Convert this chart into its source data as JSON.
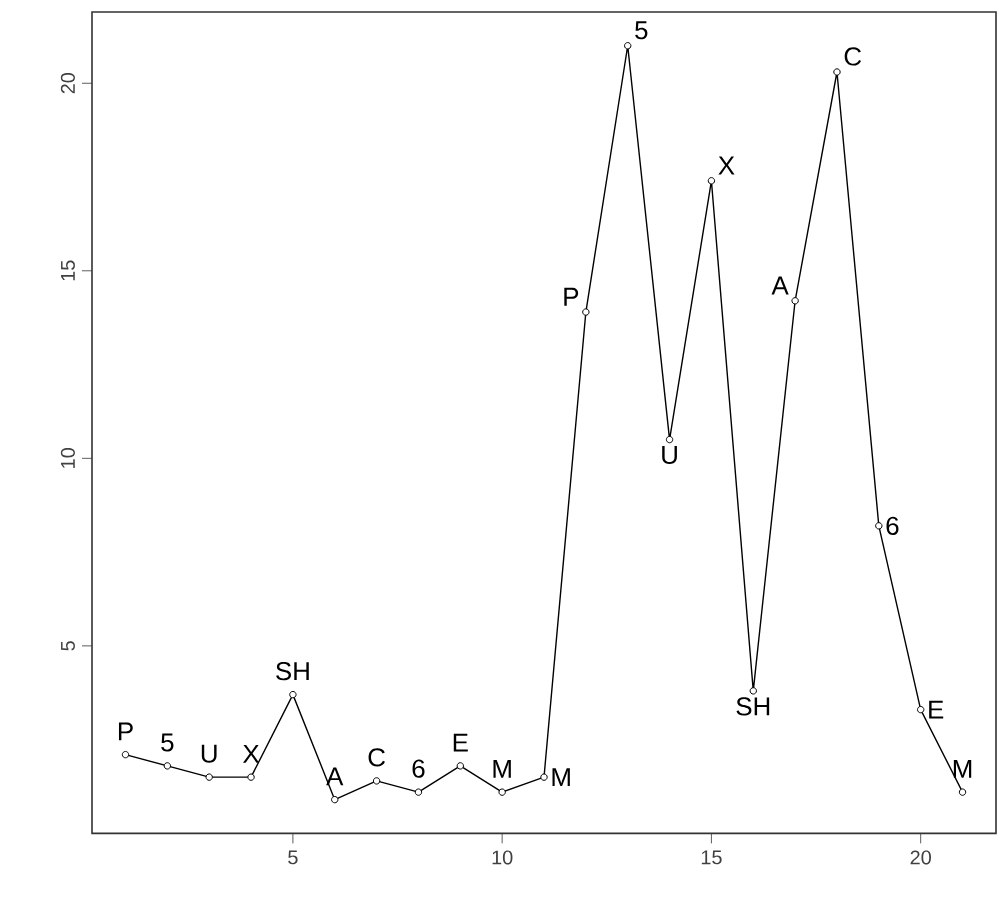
{
  "chart_data": {
    "type": "line",
    "x": [
      1,
      2,
      3,
      4,
      5,
      6,
      7,
      8,
      9,
      10,
      11,
      12,
      13,
      14,
      15,
      16,
      17,
      18,
      19,
      20,
      21
    ],
    "values": [
      2.1,
      1.8,
      1.5,
      1.5,
      3.7,
      0.9,
      1.4,
      1.1,
      1.8,
      1.1,
      1.5,
      13.9,
      21.0,
      10.5,
      17.4,
      3.8,
      14.2,
      20.3,
      8.2,
      3.3,
      1.1
    ],
    "color": "#000000",
    "marker": "circle",
    "line_style": "solid",
    "xlim": [
      0.2,
      21.8
    ],
    "ylim": [
      0.0,
      21.9
    ],
    "xticks": [
      5,
      10,
      15,
      20
    ],
    "yticks": [
      5,
      10,
      15,
      20
    ],
    "annotations": [
      {
        "text": "P",
        "x": 1,
        "y": 2.1
      },
      {
        "text": "5",
        "x": 2,
        "y": 1.8
      },
      {
        "text": "U",
        "x": 3,
        "y": 1.5
      },
      {
        "text": "X",
        "x": 4,
        "y": 1.5
      },
      {
        "text": "SH",
        "x": 5,
        "y": 3.7
      },
      {
        "text": "A",
        "x": 6,
        "y": 0.9
      },
      {
        "text": "C",
        "x": 7,
        "y": 1.4
      },
      {
        "text": "6",
        "x": 8,
        "y": 1.1
      },
      {
        "text": "E",
        "x": 9,
        "y": 1.8
      },
      {
        "text": "M",
        "x": 10,
        "y": 1.1
      },
      {
        "text": "M",
        "x": 11,
        "y": 1.5
      },
      {
        "text": "P",
        "x": 12,
        "y": 13.9
      },
      {
        "text": "5",
        "x": 13,
        "y": 21.0
      },
      {
        "text": "U",
        "x": 14,
        "y": 10.5
      },
      {
        "text": "X",
        "x": 15,
        "y": 17.4
      },
      {
        "text": "SH",
        "x": 16,
        "y": 3.8
      },
      {
        "text": "A",
        "x": 17,
        "y": 14.2
      },
      {
        "text": "C",
        "x": 18,
        "y": 20.3
      },
      {
        "text": "6",
        "x": 19,
        "y": 8.2
      },
      {
        "text": "E",
        "x": 20,
        "y": 3.3
      },
      {
        "text": "M",
        "x": 21,
        "y": 1.1
      }
    ]
  }
}
